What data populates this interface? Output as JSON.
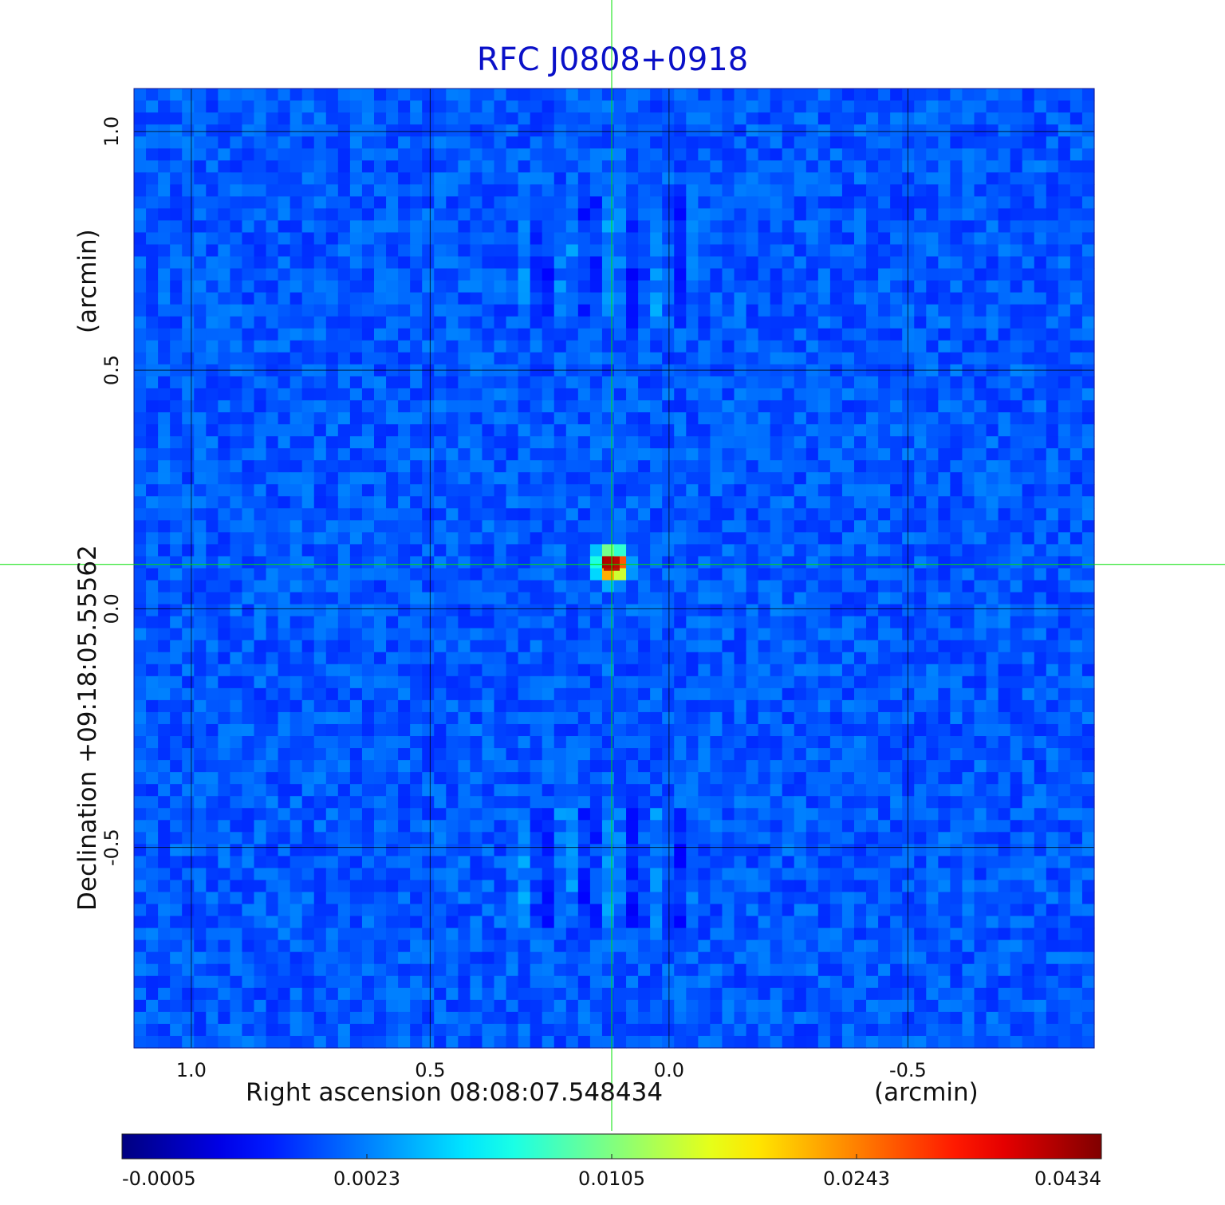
{
  "title": "RFC J0808+0918",
  "colors": {
    "title": "#0a10c8",
    "crosshair": "#00e000",
    "grid": "#000000",
    "background_map": "#0f3ff0"
  },
  "chart_data": {
    "type": "heatmap",
    "title": "RFC J0808+0918",
    "xlabel": "Right ascension  08:08:07.548434",
    "xunit": "(arcmin)",
    "ylabel": "Declination  +09:18:05.55562",
    "yunit": "(arcmin)",
    "x_ticks": [
      "1.0",
      "0.5",
      "0.0",
      "-0.5"
    ],
    "x_tick_values": [
      1.0,
      0.5,
      0.0,
      -0.5
    ],
    "y_ticks": [
      "1.0",
      "0.5",
      "0.0",
      "-0.5"
    ],
    "y_tick_values": [
      1.0,
      0.5,
      0.0,
      -0.5
    ],
    "xlim": [
      1.12,
      -0.89
    ],
    "ylim": [
      -0.92,
      1.09
    ],
    "grid": true,
    "colormap": "jet",
    "colorbar_ticks": [
      "-0.0005",
      "0.0023",
      "0.0105",
      "0.0243",
      "0.0434"
    ],
    "colorbar_range": [
      -0.0005,
      0.0434
    ],
    "source": {
      "x": 0.12,
      "y": 0.093,
      "peak": 0.0434
    },
    "crosshair": {
      "x": 0.12,
      "y": 0.093
    },
    "background_level": 0.0005
  }
}
